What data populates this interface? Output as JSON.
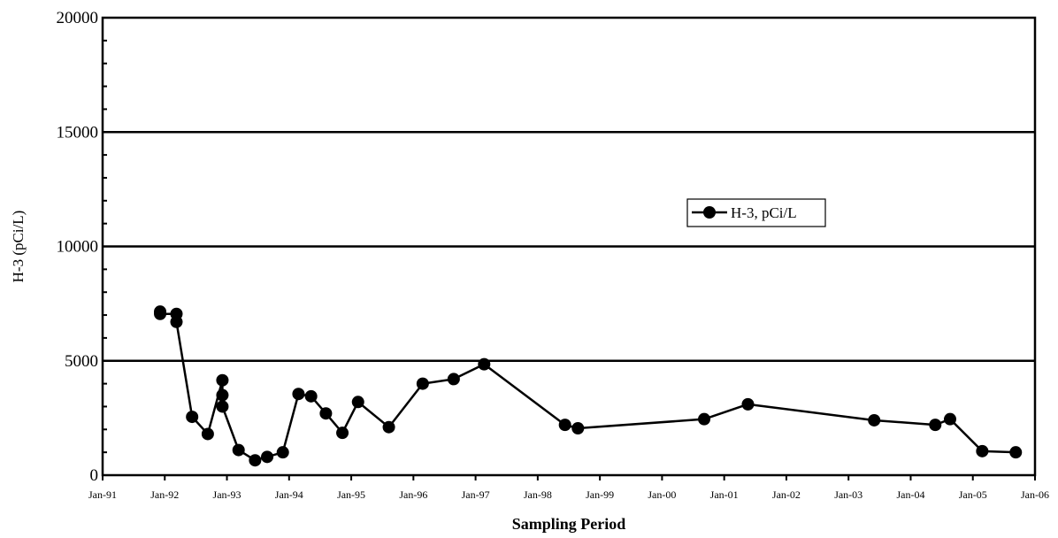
{
  "chart_data": {
    "type": "line",
    "title": "",
    "xlabel": "Sampling Period",
    "ylabel": "H-3 (pCi/L)",
    "ylim": [
      0,
      20000
    ],
    "yticks": [
      0,
      5000,
      10000,
      15000,
      20000
    ],
    "y_major_gridlines": [
      5000,
      10000,
      15000
    ],
    "xlim": [
      "1991-01-01",
      "2006-01-01"
    ],
    "xticks": [
      "Jan-91",
      "Jan-92",
      "Jan-93",
      "Jan-94",
      "Jan-95",
      "Jan-96",
      "Jan-97",
      "Jan-98",
      "Jan-99",
      "Jan-00",
      "Jan-01",
      "Jan-02",
      "Jan-03",
      "Jan-04",
      "Jan-05",
      "Jan-06"
    ],
    "legend": {
      "position": "center-right",
      "entries": [
        "H-3, pCi/L"
      ]
    },
    "color": "#000000",
    "series": [
      {
        "name": "H-3, pCi/L",
        "x": [
          "1991-12-05",
          "1991-12-05",
          "1992-03-10",
          "1992-03-10",
          "1992-06-10",
          "1992-09-10",
          "1992-12-05",
          "1992-12-05",
          "1992-12-05",
          "1993-03-10",
          "1993-06-15",
          "1993-08-25",
          "1993-11-25",
          "1994-02-25",
          "1994-05-10",
          "1994-08-05",
          "1994-11-10",
          "1995-02-10",
          "1995-08-10",
          "1996-02-25",
          "1996-08-25",
          "1997-02-20",
          "1998-06-10",
          "1998-08-25",
          "2000-09-05",
          "2001-05-20",
          "2003-06-01",
          "2004-05-25",
          "2004-08-20",
          "2005-02-25",
          "2005-09-10"
        ],
        "y": [
          7150,
          7050,
          7050,
          6700,
          2550,
          1800,
          4150,
          3500,
          3000,
          1100,
          650,
          800,
          1000,
          3550,
          3450,
          2700,
          1850,
          3200,
          2100,
          4000,
          4200,
          4850,
          2200,
          2050,
          2450,
          3100,
          2400,
          2200,
          2450,
          1050,
          1000
        ]
      }
    ]
  }
}
